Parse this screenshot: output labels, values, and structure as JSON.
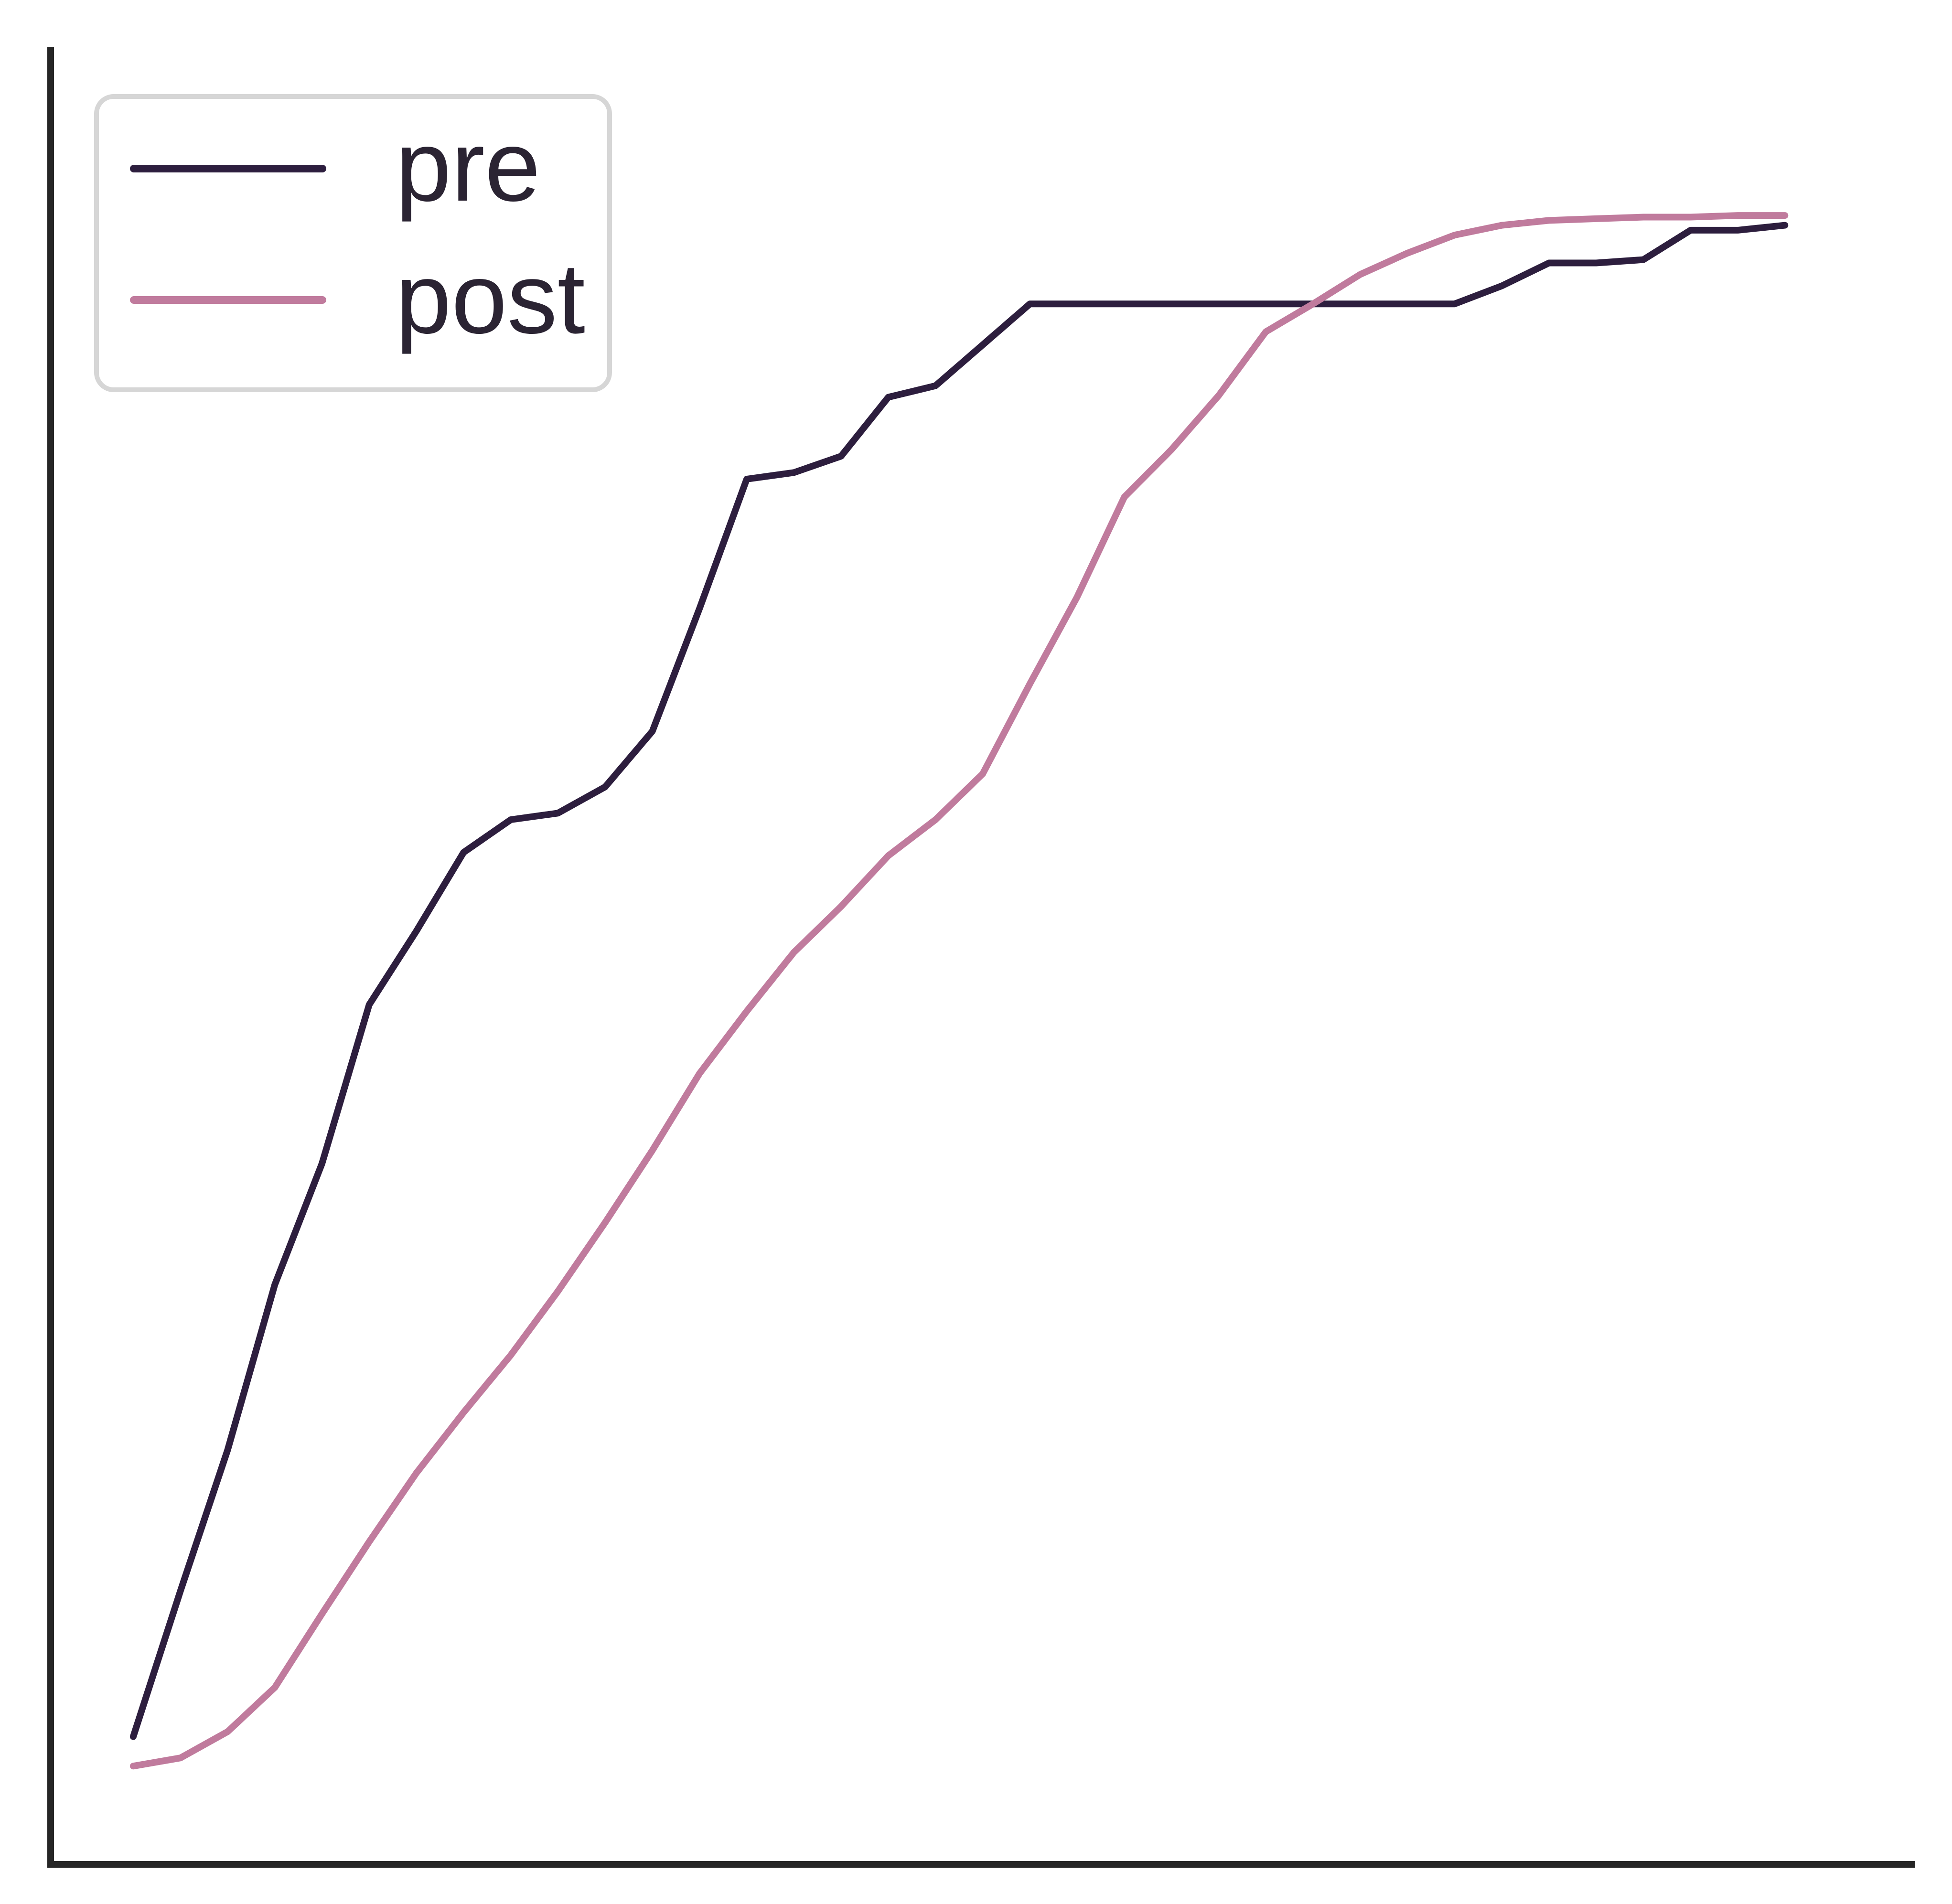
{
  "chart_data": {
    "type": "line",
    "title": "",
    "xlabel": "",
    "ylabel": "",
    "x": [
      0,
      1,
      2,
      3,
      4,
      5,
      6,
      7,
      8,
      9,
      10,
      11,
      12,
      13,
      14,
      15,
      16,
      17,
      18,
      19,
      20,
      21,
      22,
      23,
      24,
      25,
      26,
      27,
      28,
      29,
      30,
      31,
      32,
      33,
      34,
      35
    ],
    "xlim": [
      -1.75,
      37.75
    ],
    "ylim": [
      -0.06,
      1.05
    ],
    "grid": false,
    "legend_position": "top-left",
    "series": [
      {
        "name": "pre",
        "color": "#2d1e3e",
        "values": [
          0.018,
          0.107,
          0.193,
          0.294,
          0.368,
          0.465,
          0.51,
          0.558,
          0.578,
          0.582,
          0.598,
          0.632,
          0.707,
          0.786,
          0.79,
          0.8,
          0.836,
          0.843,
          0.868,
          0.893,
          0.893,
          0.893,
          0.893,
          0.893,
          0.893,
          0.893,
          0.893,
          0.893,
          0.893,
          0.904,
          0.918,
          0.918,
          0.92,
          0.938,
          0.938,
          0.941
        ]
      },
      {
        "name": "post",
        "color": "#c07b9d",
        "values": [
          0.0,
          0.005,
          0.021,
          0.048,
          0.093,
          0.137,
          0.179,
          0.216,
          0.251,
          0.29,
          0.332,
          0.376,
          0.423,
          0.461,
          0.497,
          0.525,
          0.556,
          0.578,
          0.606,
          0.661,
          0.714,
          0.775,
          0.804,
          0.837,
          0.876,
          0.893,
          0.911,
          0.924,
          0.935,
          0.941,
          0.944,
          0.945,
          0.946,
          0.946,
          0.947,
          0.947
        ]
      }
    ]
  }
}
